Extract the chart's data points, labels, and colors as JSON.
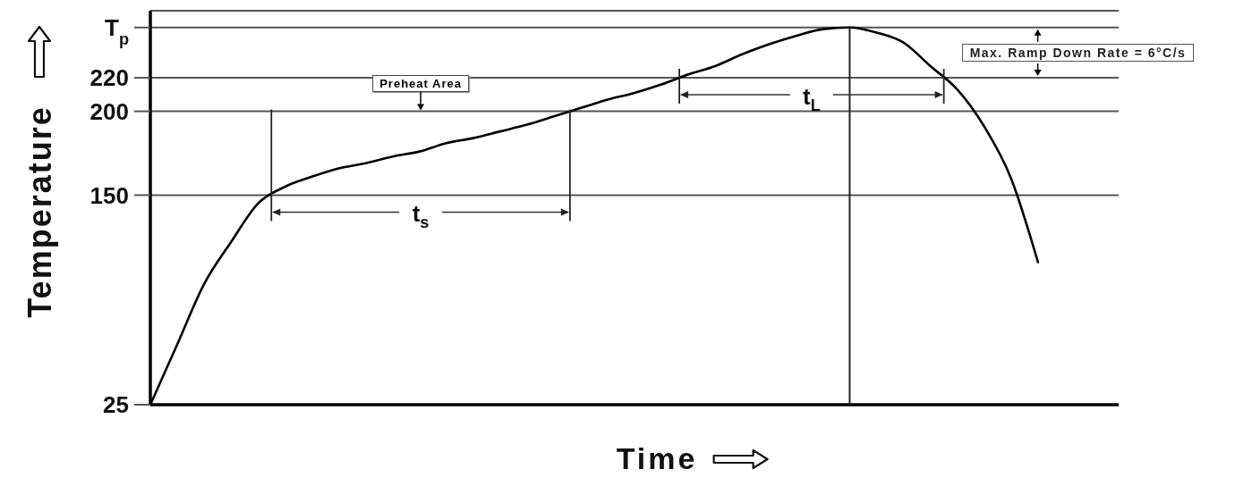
{
  "chart_data": {
    "type": "line",
    "xlabel": "Time",
    "ylabel": "Temperature",
    "categories": [
      null,
      null,
      null,
      null,
      null,
      null,
      null,
      null,
      null,
      null,
      null,
      null,
      null,
      null,
      null,
      null,
      null,
      null,
      null,
      null,
      null,
      null,
      null,
      null,
      null,
      null,
      null,
      null,
      null,
      null,
      null,
      null,
      null,
      null,
      null,
      null,
      null
    ],
    "values": [
      25,
      61,
      97,
      122,
      145,
      155,
      161,
      166,
      169,
      173,
      176,
      181,
      184,
      188,
      192,
      197,
      202,
      207,
      211,
      216,
      222,
      227,
      234,
      240,
      245,
      249,
      250,
      247,
      241,
      227,
      213,
      191,
      160,
      110,
      null,
      null,
      null
    ],
    "color": "#000000",
    "ylim": [
      25,
      260
    ],
    "yticks": [
      25,
      150,
      200,
      220,
      {
        "value": 250,
        "label": "T$_{p}$"
      }
    ],
    "grid": "y",
    "annotations": [
      "Preheat Area",
      "t$_{s}$",
      "t$_{L}$",
      "Max. Ramp Down Rate = 6°C/s"
    ]
  }
}
